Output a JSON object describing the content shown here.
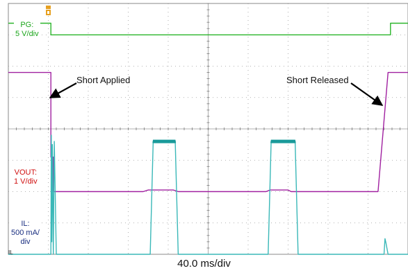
{
  "chart_data": {
    "type": "line",
    "title": "",
    "xlabel": "",
    "ylabel": "",
    "timebase": "40.0 ms/div",
    "x_units": "ms",
    "xlim": [
      0,
      400
    ],
    "divisions": {
      "x": 10,
      "y": 8
    },
    "grid": true,
    "channel_labels": [
      {
        "key": "pg",
        "lines": [
          "PG:",
          "5 V/div"
        ],
        "color": "#1aa51a"
      },
      {
        "key": "vout",
        "lines": [
          "VOUT:",
          "1 V/div"
        ],
        "color": "#d01010"
      },
      {
        "key": "il",
        "lines": [
          "IL:",
          "500 mA/",
          "div"
        ],
        "color": "#1a2f80"
      }
    ],
    "ground_marker": "IL",
    "series": [
      {
        "key": "pg",
        "color": "#2ab52a",
        "x": [
          0,
          42.6,
          42.6,
          382.5,
          382.5,
          400
        ],
        "y": [
          7.37,
          7.37,
          7.0,
          7.0,
          7.37,
          7.37
        ]
      },
      {
        "key": "vout",
        "color": "#a020a0",
        "x": [
          0,
          42.6,
          42.6,
          45,
          45,
          135,
          140,
          165,
          170,
          258,
          262,
          280,
          283,
          370,
          380,
          400
        ],
        "y": [
          5.8,
          5.8,
          3.1,
          3.1,
          2.0,
          2.0,
          2.05,
          2.05,
          2.0,
          2.0,
          2.05,
          2.05,
          2.0,
          2.0,
          5.8,
          5.8
        ]
      },
      {
        "key": "il",
        "color": "#3ab8b8",
        "x": [
          0,
          42.6,
          43,
          43.5,
          44,
          45,
          46,
          48,
          142,
          145,
          167,
          170,
          260,
          263,
          287,
          290,
          376,
          377,
          378,
          380,
          400
        ],
        "y": [
          0.0,
          0.0,
          3.8,
          0.4,
          3.5,
          0.0,
          3.6,
          0.0,
          0.0,
          3.6,
          3.6,
          0.0,
          0.0,
          3.6,
          3.6,
          0.0,
          0.0,
          0.5,
          0.35,
          0.0,
          0.0
        ]
      }
    ],
    "annotations": [
      {
        "text": "Short Applied",
        "x": 42.6,
        "y": 5.8
      },
      {
        "text": "Short Released",
        "x": 377,
        "y": 5.8
      }
    ]
  }
}
